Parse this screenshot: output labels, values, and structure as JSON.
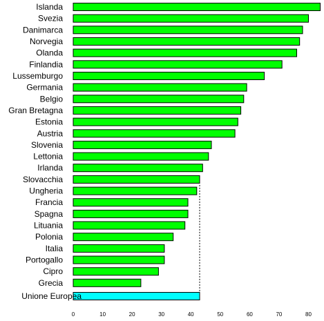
{
  "chart_data": {
    "type": "bar",
    "orientation": "horizontal",
    "categories": [
      "Islanda",
      "Svezia",
      "Danimarca",
      "Norvegia",
      "Olanda",
      "Finlandia",
      "Lussemburgo",
      "Germania",
      "Belgio",
      "Gran Bretagna",
      "Estonia",
      "Austria",
      "Slovenia",
      "Lettonia",
      "Irlanda",
      "Slovacchia",
      "Ungheria",
      "Francia",
      "Spagna",
      "Lituania",
      "Polonia",
      "Italia",
      "Portogallo",
      "Cipro",
      "Grecia"
    ],
    "values": [
      84,
      80,
      78,
      77,
      76,
      71,
      65,
      59,
      58,
      57,
      56,
      55,
      47,
      46,
      44,
      43,
      42,
      39,
      39,
      38,
      34,
      31,
      31,
      29,
      23
    ],
    "reference": {
      "label": "Unione Europea",
      "value": 43
    },
    "xlim": [
      0,
      85
    ],
    "xticks": [
      0,
      10,
      20,
      30,
      40,
      50,
      60,
      70,
      80
    ],
    "reference_line": "dashed vertical line at the Unione Europea value",
    "legend": "none",
    "grid": false,
    "colors": {
      "bars": "#00ff00",
      "reference_bar": "#00ffff",
      "outline": "#000000"
    }
  }
}
